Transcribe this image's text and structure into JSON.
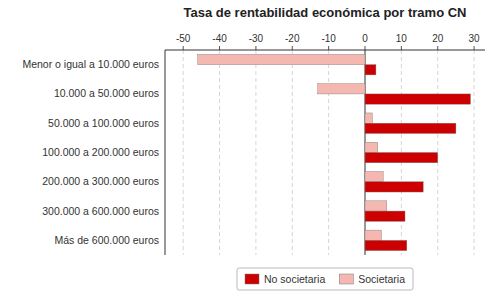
{
  "chart_data": {
    "type": "bar",
    "orientation": "horizontal",
    "title": "Tasa de rentabilidad económica por tramo CN",
    "categories": [
      "Menor o igual a 10.000 euros",
      "10.000 a 50.000 euros",
      "50.000 a 100.000 euros",
      "100.000 a 200.000 euros",
      "200.000 a 300.000 euros",
      "300.000 a 600.000 euros",
      "Más de 600.000 euros"
    ],
    "series": [
      {
        "name": "No societaria",
        "color": "#cc0000",
        "values": [
          3.0,
          29.0,
          25.0,
          20.0,
          16.0,
          11.0,
          11.5
        ]
      },
      {
        "name": "Societaria",
        "color": "#f4b8b0",
        "values": [
          -46.0,
          -13.0,
          2.0,
          3.5,
          5.0,
          6.0,
          4.5
        ]
      }
    ],
    "xlim": [
      -55,
      33
    ],
    "xticks": [
      -50,
      -40,
      -30,
      -20,
      -10,
      0,
      10,
      20,
      30
    ],
    "grid": true,
    "legend": "bottom"
  }
}
